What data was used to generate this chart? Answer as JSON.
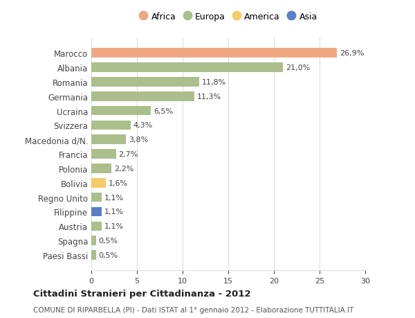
{
  "countries": [
    "Marocco",
    "Albania",
    "Romania",
    "Germania",
    "Ucraina",
    "Svizzera",
    "Macedonia d/N.",
    "Francia",
    "Polonia",
    "Bolivia",
    "Regno Unito",
    "Filippine",
    "Austria",
    "Spagna",
    "Paesi Bassi"
  ],
  "values": [
    26.9,
    21.0,
    11.8,
    11.3,
    6.5,
    4.3,
    3.8,
    2.7,
    2.2,
    1.6,
    1.1,
    1.1,
    1.1,
    0.5,
    0.5
  ],
  "labels": [
    "26,9%",
    "21,0%",
    "11,8%",
    "11,3%",
    "6,5%",
    "4,3%",
    "3,8%",
    "2,7%",
    "2,2%",
    "1,6%",
    "1,1%",
    "1,1%",
    "1,1%",
    "0,5%",
    "0,5%"
  ],
  "continents": [
    "Africa",
    "Europa",
    "Europa",
    "Europa",
    "Europa",
    "Europa",
    "Europa",
    "Europa",
    "Europa",
    "America",
    "Europa",
    "Asia",
    "Europa",
    "Europa",
    "Europa"
  ],
  "colors": {
    "Africa": "#F0A882",
    "Europa": "#ABBE8B",
    "America": "#F5CB6A",
    "Asia": "#5B7EC9"
  },
  "legend_order": [
    "Africa",
    "Europa",
    "America",
    "Asia"
  ],
  "title": "Cittadini Stranieri per Cittadinanza - 2012",
  "subtitle": "COMUNE DI RIPARBELLA (PI) - Dati ISTAT al 1° gennaio 2012 - Elaborazione TUTTITALIA.IT",
  "xlim": [
    0,
    30
  ],
  "xticks": [
    0,
    5,
    10,
    15,
    20,
    25,
    30
  ],
  "background_color": "#ffffff",
  "grid_color": "#dddddd"
}
